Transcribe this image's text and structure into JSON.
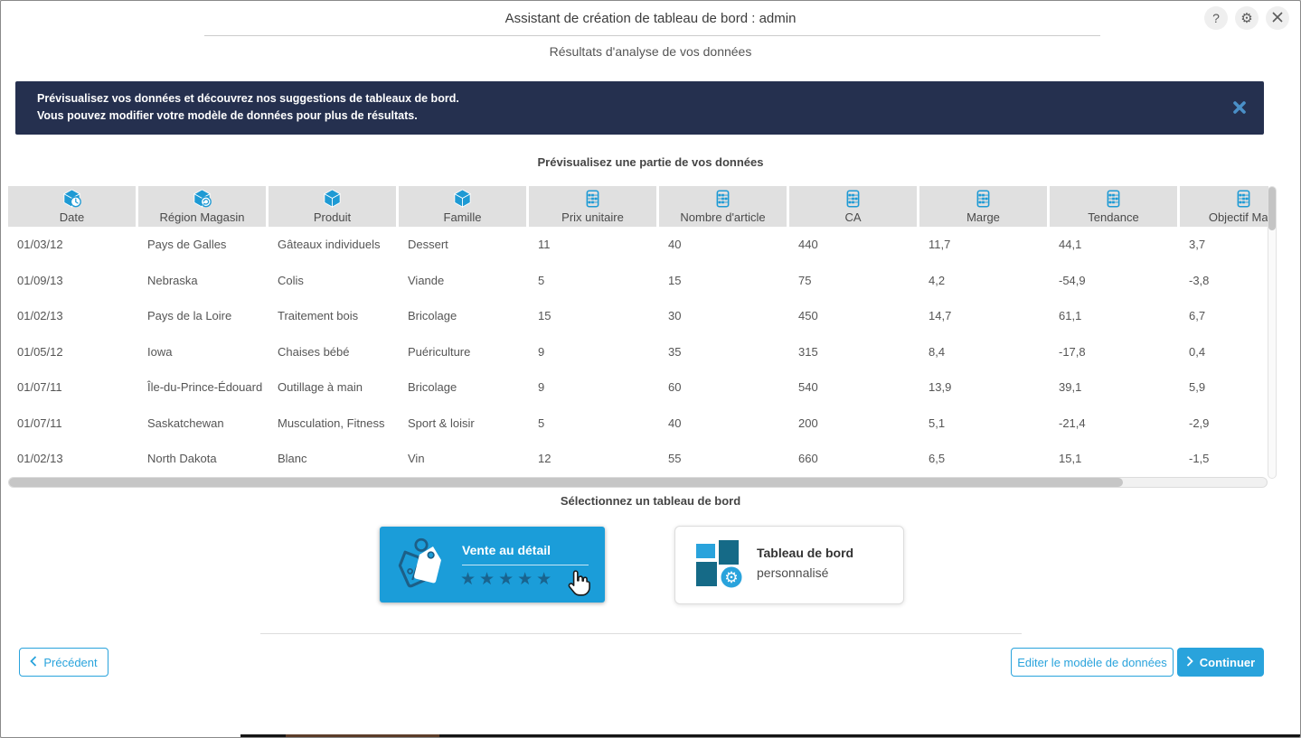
{
  "window": {
    "title": "Assistant de création de tableau de bord : admin",
    "subtitle": "Résultats d'analyse de vos données",
    "controls": {
      "help_label": "?"
    }
  },
  "banner": {
    "line1": "Prévisualisez vos données et découvrez nos suggestions de tableaux de bord.",
    "line2": "Vous pouvez modifier votre modèle de données pour plus de résultats."
  },
  "preview": {
    "heading": "Prévisualisez une partie de vos données",
    "columns": [
      {
        "label": "Date",
        "icon": "cube-clock-icon"
      },
      {
        "label": "Région Magasin",
        "icon": "cube-globe-icon"
      },
      {
        "label": "Produit",
        "icon": "cube-icon"
      },
      {
        "label": "Famille",
        "icon": "cube-icon"
      },
      {
        "label": "Prix unitaire",
        "icon": "abacus-icon"
      },
      {
        "label": "Nombre d'article",
        "icon": "abacus-icon"
      },
      {
        "label": "CA",
        "icon": "abacus-icon"
      },
      {
        "label": "Marge",
        "icon": "abacus-icon"
      },
      {
        "label": "Tendance",
        "icon": "abacus-icon"
      },
      {
        "label": "Objectif Marg",
        "icon": "abacus-icon"
      }
    ],
    "rows": [
      [
        "01/03/12",
        "Pays de Galles",
        "Gâteaux individuels",
        "Dessert",
        "11",
        "40",
        "440",
        "11,7",
        "44,1",
        "3,7"
      ],
      [
        "01/09/13",
        "Nebraska",
        "Colis",
        "Viande",
        "5",
        "15",
        "75",
        "4,2",
        "-54,9",
        "-3,8"
      ],
      [
        "01/02/13",
        "Pays de la Loire",
        "Traitement bois",
        "Bricolage",
        "15",
        "30",
        "450",
        "14,7",
        "61,1",
        "6,7"
      ],
      [
        "01/05/12",
        "Iowa",
        "Chaises bébé",
        "Puériculture",
        "9",
        "35",
        "315",
        "8,4",
        "-17,8",
        "0,4"
      ],
      [
        "01/07/11",
        "Île-du-Prince-Édouard",
        "Outillage à main",
        "Bricolage",
        "9",
        "60",
        "540",
        "13,9",
        "39,1",
        "5,9"
      ],
      [
        "01/07/11",
        "Saskatchewan",
        "Musculation, Fitness",
        "Sport & loisir",
        "5",
        "40",
        "200",
        "5,1",
        "-21,4",
        "-2,9"
      ],
      [
        "01/02/13",
        "North Dakota",
        "Blanc",
        "Vin",
        "12",
        "55",
        "660",
        "6,5",
        "15,1",
        "-1,5"
      ]
    ]
  },
  "selection": {
    "heading": "Sélectionnez un tableau de bord",
    "retail_card": {
      "title": "Vente au détail",
      "stars": 5,
      "icon": "price-tags-icon"
    },
    "custom_card": {
      "title_line1": "Tableau de bord",
      "title_line2": "personnalisé",
      "icon": "dashboard-tiles-gear-icon"
    }
  },
  "footer": {
    "back_label": "Précédent",
    "edit_label": "Editer le modèle de données",
    "continue_label": "Continuer"
  },
  "colors": {
    "accent_blue": "#29a3dc",
    "icon_blue": "#1e9ad4",
    "card_blue": "#1b9dd9",
    "banner_navy": "#25304f",
    "star_teal": "#19648f",
    "dark_teal": "#156a87",
    "header_cell_gray": "#e0e0e0"
  }
}
